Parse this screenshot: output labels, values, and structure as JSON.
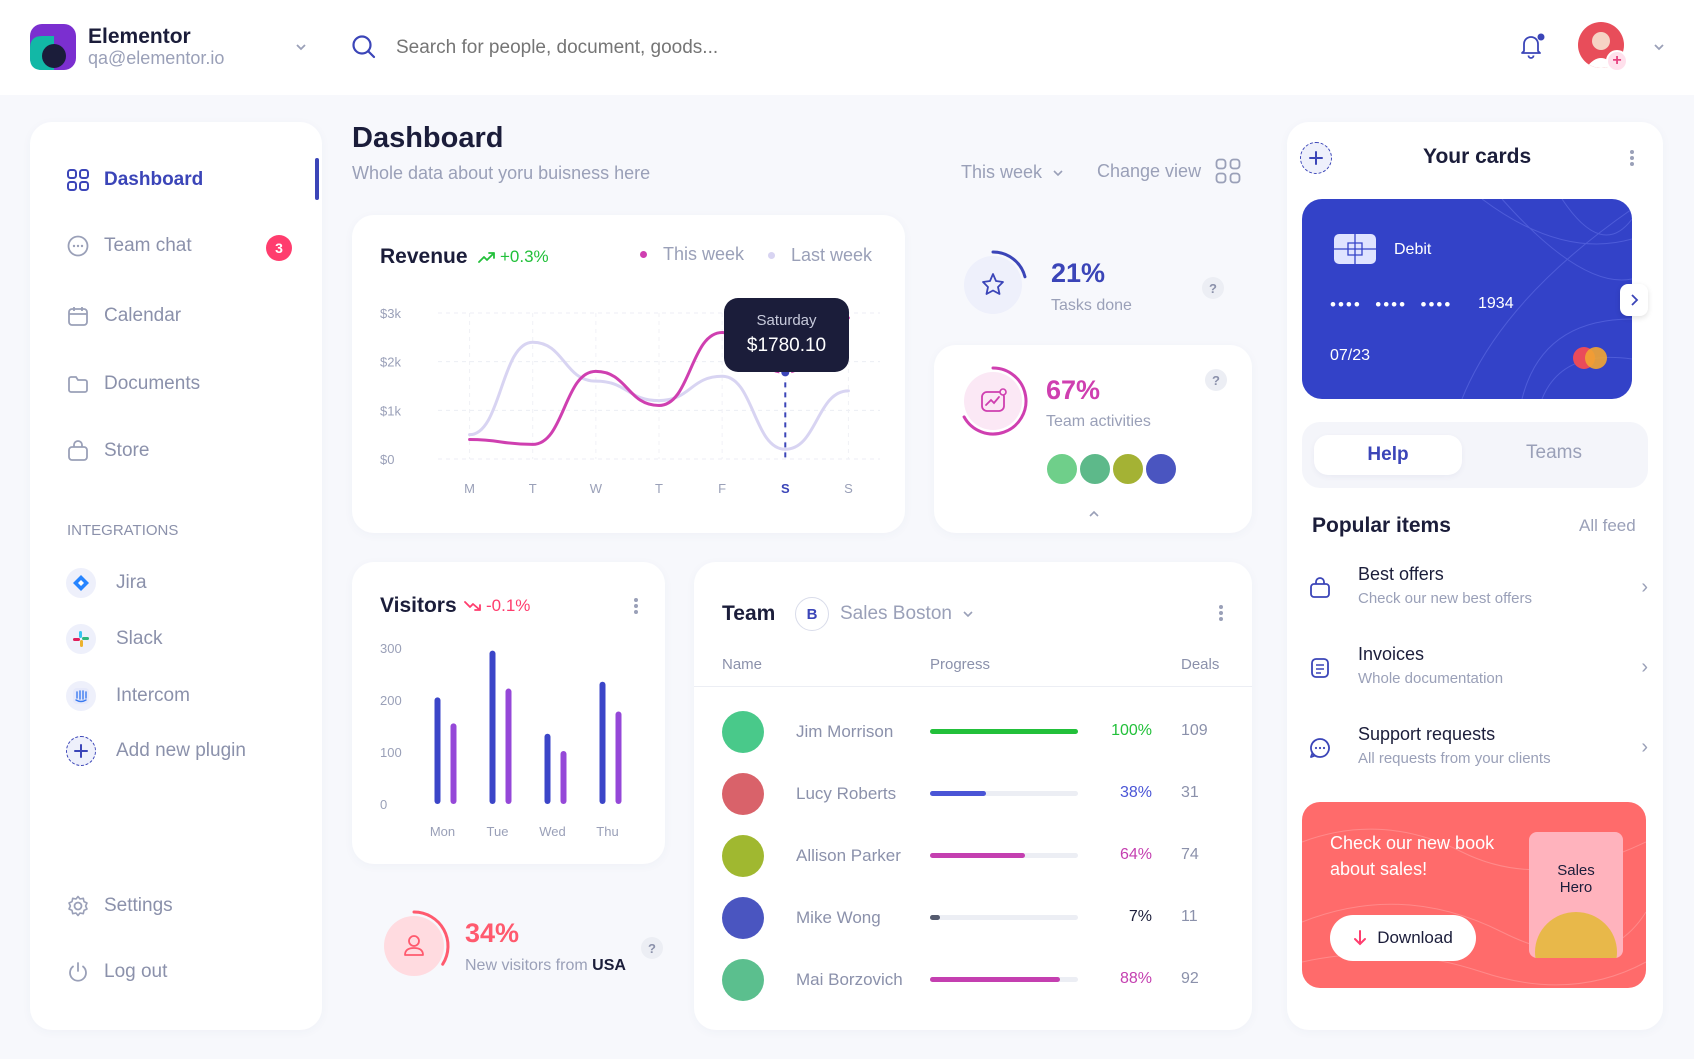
{
  "account": {
    "name": "Elementor",
    "email": "qa@elementor.io"
  },
  "search": {
    "placeholder": "Search for people, document, goods..."
  },
  "sidebar": {
    "items": [
      {
        "label": "Dashboard"
      },
      {
        "label": "Team chat",
        "badge": "3"
      },
      {
        "label": "Calendar"
      },
      {
        "label": "Documents"
      },
      {
        "label": "Store"
      }
    ],
    "integrations_heading": "INTEGRATIONS",
    "integrations": [
      {
        "label": "Jira"
      },
      {
        "label": "Slack"
      },
      {
        "label": "Intercom"
      },
      {
        "label": "Add new plugin"
      }
    ],
    "settings": "Settings",
    "logout": "Log out"
  },
  "header": {
    "title": "Dashboard",
    "subtitle": "Whole data about yoru buisness here",
    "period": "This week",
    "change_view": "Change view"
  },
  "revenue": {
    "title": "Revenue",
    "change": "+0.3%",
    "legend_this": "This week",
    "legend_last": "Last week",
    "tooltip_day": "Saturday",
    "tooltip_value": "$1780.10"
  },
  "chart_data": [
    {
      "type": "line",
      "title": "Revenue",
      "x": [
        "M",
        "T",
        "W",
        "T",
        "F",
        "S",
        "S"
      ],
      "y_ticks": [
        "$3k",
        "$2k",
        "$1k",
        "$0"
      ],
      "ylim": [
        0,
        3000
      ],
      "highlighted_x": "S",
      "series": [
        {
          "name": "This week",
          "color": "#cf3fb0",
          "values": [
            400,
            300,
            1800,
            1100,
            2600,
            1780,
            2900
          ]
        },
        {
          "name": "Last week",
          "color": "#d8d4f2",
          "values": [
            500,
            2400,
            1600,
            1200,
            1700,
            200,
            1400
          ]
        }
      ]
    },
    {
      "type": "bar",
      "title": "Visitors",
      "categories": [
        "Mon",
        "Tue",
        "Wed",
        "Thu"
      ],
      "y_ticks": [
        "300",
        "200",
        "100",
        "0"
      ],
      "ylim": [
        0,
        300
      ],
      "series": [
        {
          "color": "#3b45c8",
          "values": [
            205,
            295,
            135,
            235
          ]
        },
        {
          "color": "#9548d8",
          "values": [
            155,
            222,
            102,
            178
          ]
        }
      ]
    }
  ],
  "stats": {
    "tasks": {
      "value": "21%",
      "label": "Tasks done",
      "progress": 0.21
    },
    "activities": {
      "value": "67%",
      "label": "Team activities",
      "progress": 0.67
    },
    "new_visitors": {
      "value": "34%",
      "label": "New visitors from",
      "country": "USA",
      "progress": 0.34
    }
  },
  "visitors": {
    "title": "Visitors",
    "change": "-0.1%"
  },
  "team": {
    "title": "Team",
    "group_initial": "B",
    "group": "Sales Boston",
    "columns": [
      "Name",
      "Progress",
      "Deals"
    ],
    "rows": [
      {
        "name": "Jim Morrison",
        "percent": "100%",
        "progress": 1.0,
        "deals": "109",
        "color": "#22c03a"
      },
      {
        "name": "Lucy Roberts",
        "percent": "38%",
        "progress": 0.38,
        "deals": "31",
        "color": "#4a55d6"
      },
      {
        "name": "Allison Parker",
        "percent": "64%",
        "progress": 0.64,
        "deals": "74",
        "color": "#c43fb0"
      },
      {
        "name": "Mike Wong",
        "percent": "7%",
        "progress": 0.07,
        "deals": "11",
        "color": "#555b6e"
      },
      {
        "name": "Mai Borzovich",
        "percent": "88%",
        "progress": 0.88,
        "deals": "92",
        "color": "#c43fb0"
      }
    ]
  },
  "cards": {
    "title": "Your cards",
    "type": "Debit",
    "number_masked": "••••  ••••  ••••",
    "last4": "1934",
    "expiry": "07/23"
  },
  "help": {
    "tab_help": "Help",
    "tab_teams": "Teams"
  },
  "popular": {
    "title": "Popular items",
    "all_feed": "All feed",
    "items": [
      {
        "title": "Best offers",
        "subtitle": "Check our new best offers"
      },
      {
        "title": "Invoices",
        "subtitle": "Whole documentation"
      },
      {
        "title": "Support requests",
        "subtitle": "All requests from your clients"
      }
    ]
  },
  "promo": {
    "text": "Check our new book about sales!",
    "button": "Download",
    "book_title": "Sales Hero"
  },
  "colors": {
    "accent": "#3b45b8",
    "pink": "#c43fb0",
    "green": "#22c03a",
    "red": "#ff3d6e",
    "card_blue": "#3342c8",
    "promo": "#ff6b6b"
  }
}
